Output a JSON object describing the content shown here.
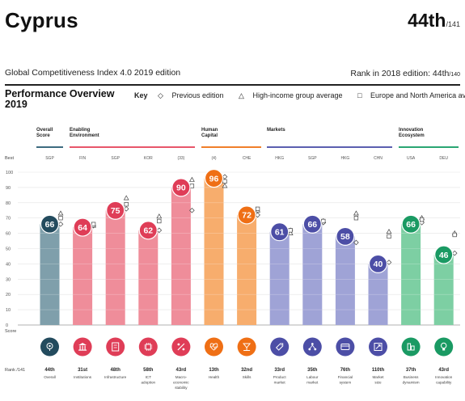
{
  "header": {
    "country": "Cyprus",
    "rank": "44th",
    "rank_total": "/141",
    "edition": "Global Competitiveness Index 4.0 2019 edition",
    "rank_2018": "Rank in 2018 edition: 44th",
    "rank_2018_total": "/140"
  },
  "overview": {
    "title_line1": "Performance Overview",
    "title_line2": "2019",
    "key_label": "Key",
    "key_previous": "Previous edition",
    "key_high_income": "High-income group average",
    "key_europe": "Europe and North America average"
  },
  "pillar_groups": [
    {
      "label_line1": "Overall",
      "label_line2": "Score",
      "color": "#3d6b80"
    },
    {
      "label_line1": "Enabling",
      "label_line2": "Environment",
      "color": "#e8566a"
    },
    {
      "label_line1": "Human",
      "label_line2": "Capital",
      "color": "#f07f2a"
    },
    {
      "label_line1": "Markets",
      "label_line2": "",
      "color": "#5b5fb0"
    },
    {
      "label_line1": "Innovation",
      "label_line2": "Ecosystem",
      "color": "#2aa673"
    }
  ],
  "row_labels": {
    "best": "Best",
    "score": "Score",
    "rank": "Rank /141"
  },
  "chart_data": {
    "type": "bar",
    "ylim": [
      0,
      100
    ],
    "yticks": [
      "100",
      "90",
      "80",
      "70",
      "60",
      "50",
      "40",
      "30",
      "20",
      "10",
      "0"
    ],
    "categories": [
      "Overall",
      "Institutions",
      "Infrastructure",
      "ICT adoption",
      "Macro-economic stability",
      "Health",
      "Skills",
      "Product market",
      "Labour market",
      "Financial system",
      "Market size",
      "Business dynamism",
      "Innovation capability"
    ],
    "best": [
      "SGP",
      "FIN",
      "SGP",
      "KOR",
      "(33)",
      "(4)",
      "CHE",
      "HKG",
      "SGP",
      "HKG",
      "CHN",
      "USA",
      "DEU"
    ],
    "values": [
      66,
      64,
      75,
      62,
      90,
      96,
      72,
      61,
      66,
      58,
      40,
      66,
      46
    ],
    "ranks": [
      "44th",
      "31st",
      "48th",
      "58th",
      "43rd",
      "13th",
      "32nd",
      "33rd",
      "35th",
      "76th",
      "110th",
      "37th",
      "43rd"
    ],
    "previous_edition": [
      66,
      65,
      76,
      62,
      75,
      97,
      72,
      62,
      67,
      54,
      41,
      67,
      47
    ],
    "high_income_average": [
      73,
      65,
      83,
      71,
      95,
      91,
      75,
      60,
      68,
      73,
      61,
      70,
      60
    ],
    "europe_average": [
      70,
      66,
      79,
      68,
      91,
      94,
      76,
      62,
      68,
      70,
      58,
      69,
      59
    ],
    "group_of_category": [
      0,
      1,
      1,
      1,
      1,
      2,
      2,
      3,
      3,
      3,
      3,
      4,
      4
    ],
    "bar_colors": {
      "0": {
        "dark": "#234b5e",
        "light": "#7f9fab"
      },
      "1": {
        "dark": "#df3d57",
        "light": "#ef8d9a"
      },
      "2": {
        "dark": "#ef6f15",
        "light": "#f7ad6d"
      },
      "3": {
        "dark": "#4c4ea6",
        "light": "#9fa3d6"
      },
      "4": {
        "dark": "#1a9a63",
        "light": "#7dcfa3"
      }
    },
    "icons": [
      "target-icon",
      "institution-icon",
      "infrastructure-icon",
      "ict-chip-icon",
      "percent-icon",
      "heart-pulse-icon",
      "skills-icon",
      "price-tag-icon",
      "people-network-icon",
      "credit-card-icon",
      "expand-icon",
      "business-dynamism-icon",
      "lightbulb-icon"
    ]
  }
}
